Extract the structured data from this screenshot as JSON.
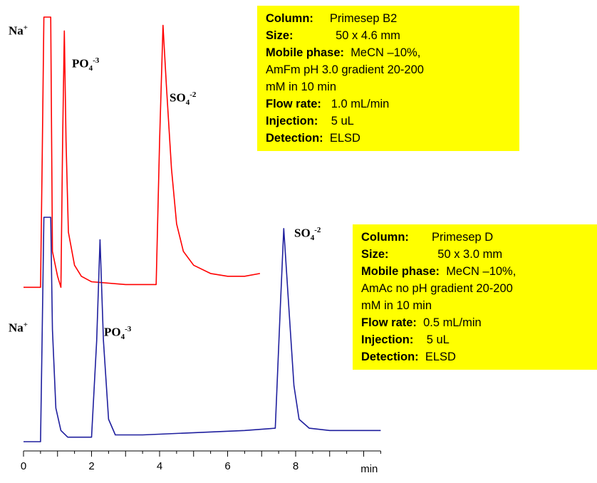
{
  "chart_data": {
    "type": "line",
    "x_axis": {
      "ticks": [
        "0",
        "2",
        "4",
        "6",
        "8"
      ],
      "unit": "min",
      "xlim": [
        0,
        10.5
      ]
    },
    "series": [
      {
        "color": "#ff0000",
        "points": [
          [
            0,
            0.02
          ],
          [
            0.5,
            0.02
          ],
          [
            0.55,
            0.5
          ],
          [
            0.6,
            1.0
          ],
          [
            0.8,
            1.0
          ],
          [
            0.85,
            0.15
          ],
          [
            1.0,
            0.06
          ],
          [
            1.1,
            0.02
          ],
          [
            1.15,
            0.55
          ],
          [
            1.2,
            0.95
          ],
          [
            1.25,
            0.55
          ],
          [
            1.32,
            0.22
          ],
          [
            1.5,
            0.1
          ],
          [
            1.7,
            0.06
          ],
          [
            2.0,
            0.04
          ],
          [
            3.0,
            0.03
          ],
          [
            3.9,
            0.03
          ],
          [
            4.0,
            0.55
          ],
          [
            4.1,
            0.97
          ],
          [
            4.2,
            0.75
          ],
          [
            4.35,
            0.45
          ],
          [
            4.5,
            0.25
          ],
          [
            4.7,
            0.15
          ],
          [
            5.0,
            0.1
          ],
          [
            5.5,
            0.07
          ],
          [
            6.0,
            0.06
          ],
          [
            6.5,
            0.06
          ],
          [
            6.95,
            0.07
          ]
        ],
        "peaks": [
          {
            "name": "Na",
            "charge": "+",
            "x": 0.7
          },
          {
            "name": "PO",
            "sub": "4",
            "charge": "-3",
            "x": 1.2
          },
          {
            "name": "SO",
            "sub": "4",
            "charge": "-2",
            "x": 4.1
          }
        ]
      },
      {
        "color": "#1f1f9e",
        "points": [
          [
            0,
            0.0
          ],
          [
            0.5,
            0.0
          ],
          [
            0.55,
            0.5
          ],
          [
            0.6,
            1.0
          ],
          [
            0.8,
            1.0
          ],
          [
            0.85,
            0.5
          ],
          [
            0.95,
            0.15
          ],
          [
            1.1,
            0.05
          ],
          [
            1.3,
            0.02
          ],
          [
            2.0,
            0.02
          ],
          [
            2.15,
            0.45
          ],
          [
            2.25,
            0.9
          ],
          [
            2.35,
            0.45
          ],
          [
            2.5,
            0.1
          ],
          [
            2.7,
            0.03
          ],
          [
            3.5,
            0.03
          ],
          [
            5.0,
            0.04
          ],
          [
            6.5,
            0.05
          ],
          [
            7.4,
            0.06
          ],
          [
            7.55,
            0.6
          ],
          [
            7.65,
            0.95
          ],
          [
            7.8,
            0.6
          ],
          [
            7.95,
            0.25
          ],
          [
            8.1,
            0.1
          ],
          [
            8.4,
            0.06
          ],
          [
            9.0,
            0.05
          ],
          [
            10.0,
            0.05
          ],
          [
            10.5,
            0.05
          ]
        ],
        "peaks": [
          {
            "name": "Na",
            "charge": "+",
            "x": 0.7
          },
          {
            "name": "PO",
            "sub": "4",
            "charge": "-3",
            "x": 2.25
          },
          {
            "name": "SO",
            "sub": "4",
            "charge": "-2",
            "x": 7.65
          }
        ]
      }
    ]
  },
  "info_boxes": [
    {
      "column_key": "Column:",
      "column_val": "Primesep B2",
      "size_key": "Size:",
      "size_val": "50 x 4.6 mm",
      "mobile_key": "Mobile phase:",
      "mobile_val": "MeCN –10%,",
      "mobile_line2": "AmFm pH 3.0  gradient 20-200",
      "mobile_line3": "mM in 10 min",
      "flow_key": "Flow rate:",
      "flow_val": "1.0  mL/min",
      "inj_key": "Injection:",
      "inj_val": "5 uL",
      "det_key": "Detection:",
      "det_val": "ELSD"
    },
    {
      "column_key": "Column:",
      "column_val": "Primesep D",
      "size_key": "Size:",
      "size_val": "50 x 3.0 mm",
      "mobile_key": "Mobile phase:",
      "mobile_val": "MeCN –10%,",
      "mobile_line2": "AmAc no pH gradient 20-200",
      "mobile_line3": "mM in 10 min",
      "flow_key": "Flow rate:",
      "flow_val": "0.5  mL/min",
      "inj_key": "Injection:",
      "inj_val": "5 uL",
      "det_key": "Detection:",
      "det_val": "ELSD"
    }
  ]
}
